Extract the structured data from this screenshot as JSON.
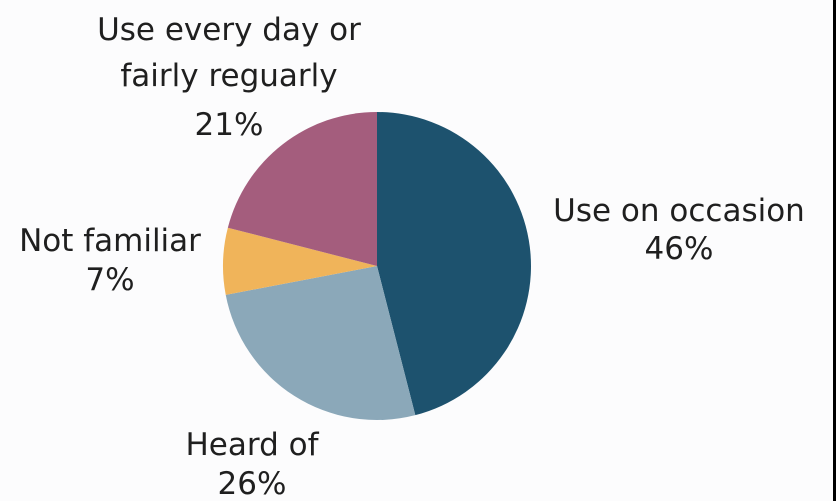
{
  "chart_data": {
    "type": "pie",
    "start_angle_deg": 0,
    "direction": "clockwise",
    "slices": [
      {
        "label": "Use on occasion",
        "value": 46,
        "value_label": "46%",
        "color": "#1d526e"
      },
      {
        "label": "Heard of",
        "value": 26,
        "value_label": "26%",
        "color": "#8ba8b9"
      },
      {
        "label": "Not familiar",
        "value": 7,
        "value_label": "7%",
        "color": "#f0b45a"
      },
      {
        "label": "Use every day or fairly reguarly",
        "label_lines": [
          "Use every day or",
          "fairly reguarly"
        ],
        "value": 21,
        "value_label": "21%",
        "color": "#a45d7d"
      }
    ]
  }
}
